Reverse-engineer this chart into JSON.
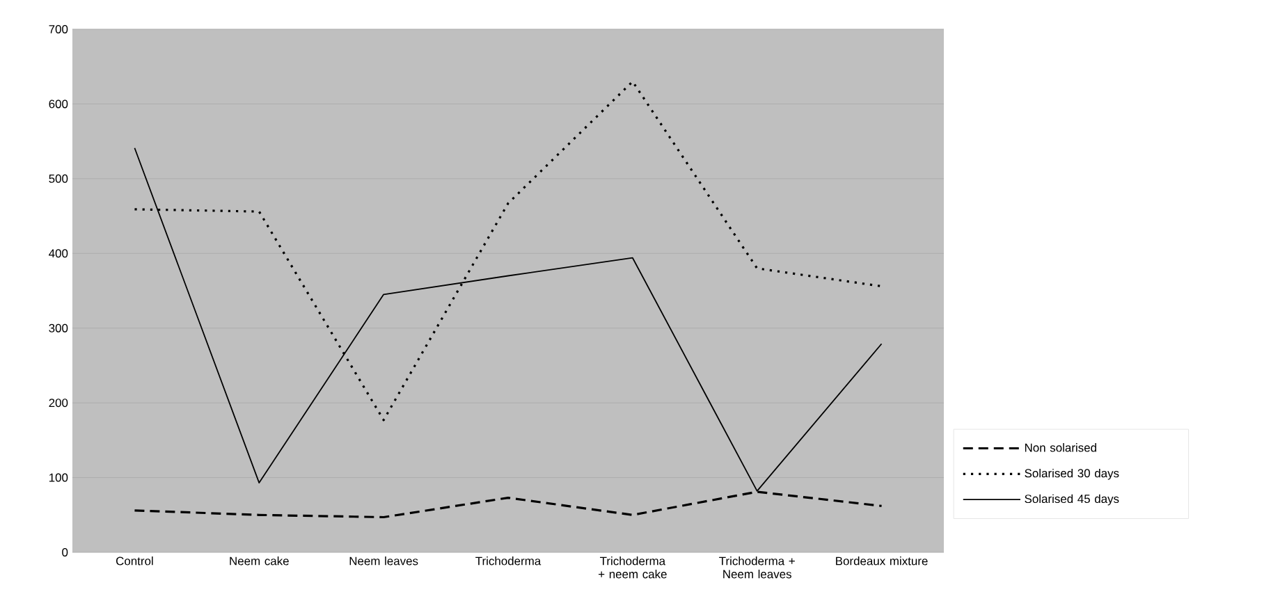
{
  "chart_data": {
    "type": "line",
    "categories": [
      "Control",
      "Neem cake",
      "Neem leaves",
      "Trichoderma",
      "Trichoderma + neem cake",
      "Trichoderma + Neem leaves",
      "Bordeaux mixture"
    ],
    "series": [
      {
        "name": "Non solarised",
        "color": "#000000",
        "line_style": "dashed",
        "values": [
          56,
          50,
          47,
          73,
          50,
          81,
          62
        ]
      },
      {
        "name": "Solarised 30 days",
        "color": "#000000",
        "line_style": "dotted",
        "values": [
          459,
          456,
          177,
          467,
          630,
          380,
          356
        ]
      },
      {
        "name": "Solarised 45 days",
        "color": "#000000",
        "line_style": "solid",
        "values": [
          541,
          93,
          345,
          370,
          394,
          82,
          279
        ]
      }
    ],
    "ylim": [
      0,
      700
    ],
    "yticks": [
      0,
      100,
      200,
      300,
      400,
      500,
      600,
      700
    ],
    "grid": "y",
    "legend": "right"
  }
}
